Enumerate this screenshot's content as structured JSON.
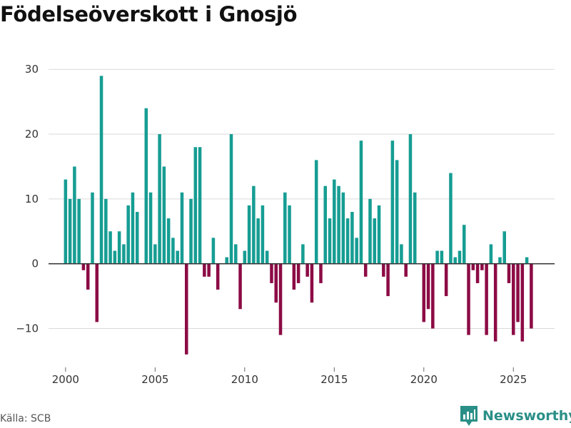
{
  "title": "Födelseöverskott i Gnosjö",
  "source": "Källa: SCB",
  "brand": {
    "name": "Newsworthy",
    "logo": "newsworthy-logo"
  },
  "colors": {
    "positive": "#169d93",
    "negative": "#8c0b45",
    "grid": "#d9d9d9",
    "zero_line": "#333333",
    "text": "#333333"
  },
  "chart_data": {
    "type": "bar",
    "title": "Födelseöverskott i Gnosjö",
    "xlabel": "",
    "ylabel": "",
    "frequency": "quarterly",
    "x_start": 2000.0,
    "x_step": 0.25,
    "xlim": [
      1999.05,
      2027.3
    ],
    "ylim": [
      -16,
      33
    ],
    "x_ticks": [
      2000,
      2005,
      2010,
      2015,
      2020,
      2025
    ],
    "x_tick_labels": [
      "2000",
      "2005",
      "2010",
      "2015",
      "2020",
      "2025"
    ],
    "y_ticks": [
      -10,
      0,
      10,
      20,
      30
    ],
    "y_tick_labels": [
      "−10",
      "0",
      "10",
      "20",
      "30"
    ],
    "values": [
      13,
      10,
      15,
      10,
      -1,
      -4,
      11,
      -9,
      29,
      10,
      5,
      2,
      5,
      3,
      9,
      11,
      8,
      0,
      24,
      11,
      3,
      20,
      15,
      7,
      4,
      2,
      11,
      -14,
      10,
      18,
      18,
      -2,
      -2,
      4,
      -4,
      0,
      1,
      20,
      3,
      -7,
      2,
      9,
      12,
      7,
      9,
      2,
      -3,
      -6,
      -11,
      11,
      9,
      -4,
      -3,
      3,
      -2,
      -6,
      16,
      -3,
      12,
      7,
      13,
      12,
      11,
      7,
      8,
      4,
      19,
      -2,
      10,
      7,
      9,
      -2,
      -5,
      19,
      16,
      3,
      -2,
      20,
      11,
      0,
      -9,
      -7,
      -10,
      2,
      2,
      -5,
      14,
      1,
      2,
      6,
      -11,
      -1,
      -3,
      -1,
      -11,
      3,
      -12,
      1,
      5,
      -3,
      -11,
      -9,
      -12,
      1,
      -10
    ]
  }
}
